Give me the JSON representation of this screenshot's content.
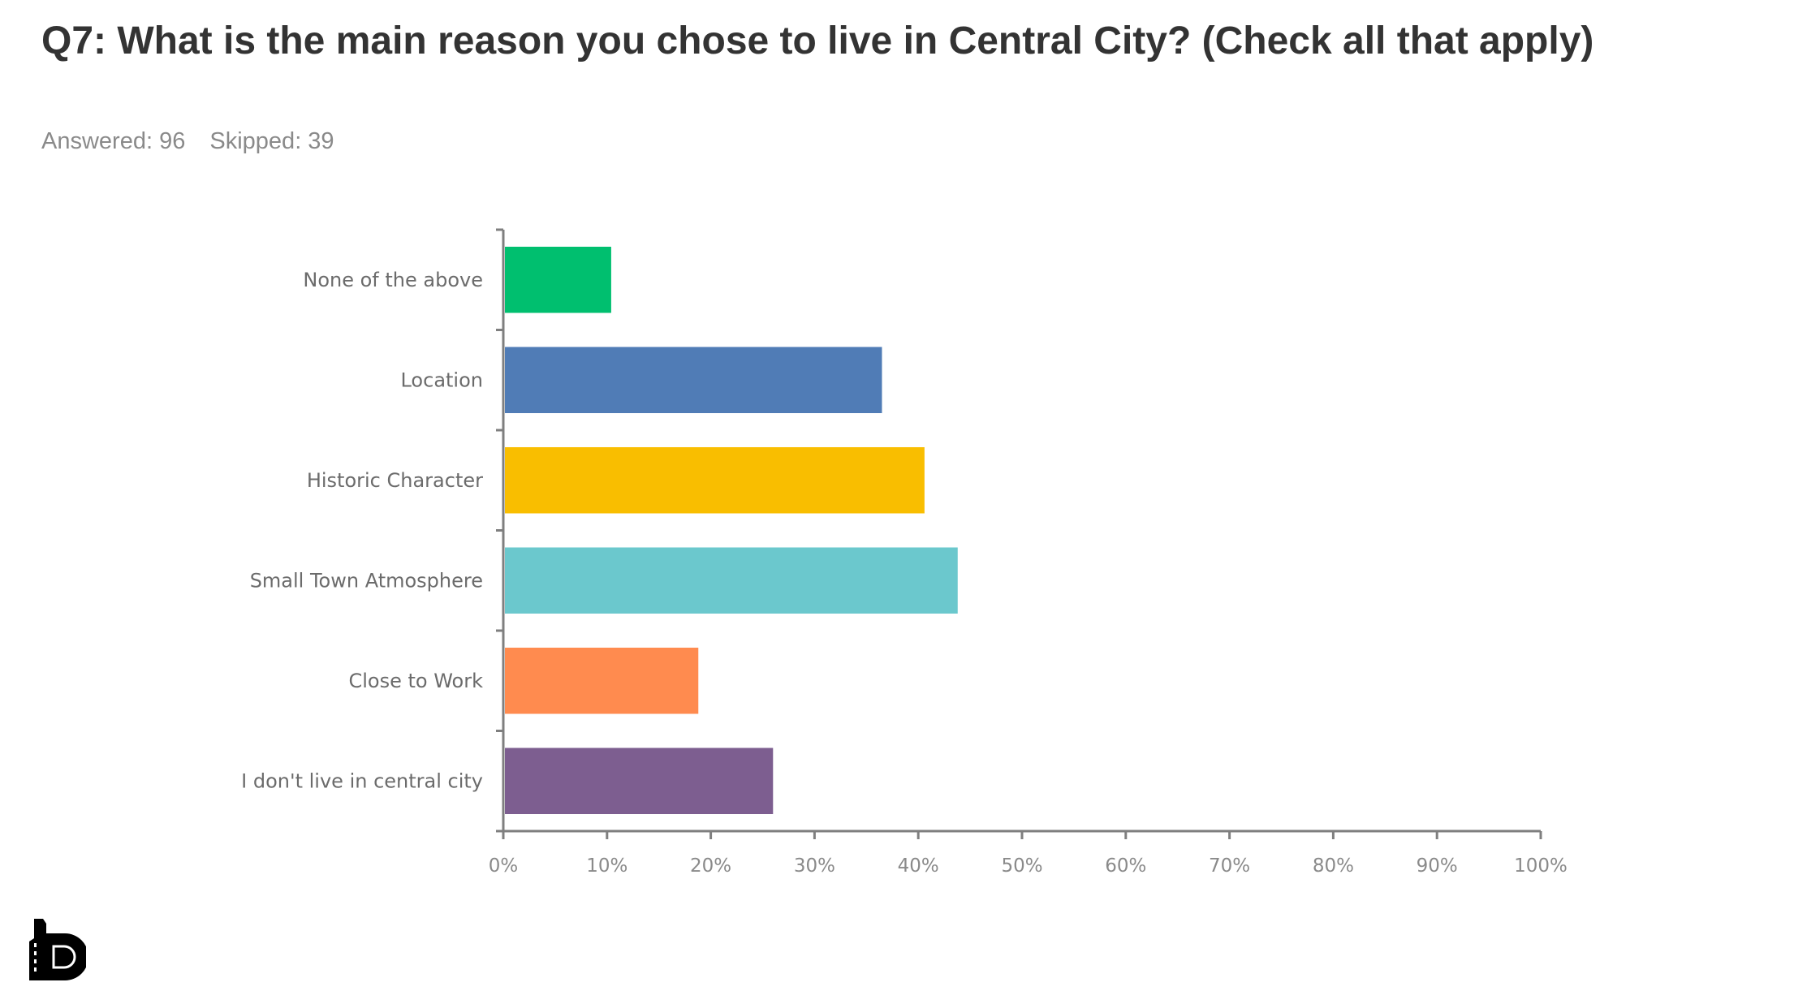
{
  "header": {
    "title": "Q7: What is the main reason you chose to live in Central City? (Check all that apply)",
    "answered": "Answered: 96",
    "skipped": "Skipped: 39"
  },
  "logo": {
    "text": "lb"
  },
  "chart_data": {
    "type": "bar",
    "orientation": "horizontal",
    "title": "Q7: What is the main reason you chose to live in Central City? (Check all that apply)",
    "xlabel": "",
    "ylabel": "",
    "categories": [
      "None of the above",
      "Location",
      "Historic Character",
      "Small Town Atmosphere",
      "Close to Work",
      "I don't live in central city"
    ],
    "values": [
      10.4,
      36.5,
      40.6,
      43.8,
      18.8,
      26.0
    ],
    "colors": [
      "#00BF6F",
      "#507CB6",
      "#F9BE00",
      "#6BC8CD",
      "#FF8B4F",
      "#7D5E90"
    ],
    "xlim": [
      0,
      100
    ],
    "xticks": [
      "0%",
      "10%",
      "20%",
      "30%",
      "40%",
      "50%",
      "60%",
      "70%",
      "80%",
      "90%",
      "100%"
    ],
    "grid": false,
    "legend": "none"
  }
}
